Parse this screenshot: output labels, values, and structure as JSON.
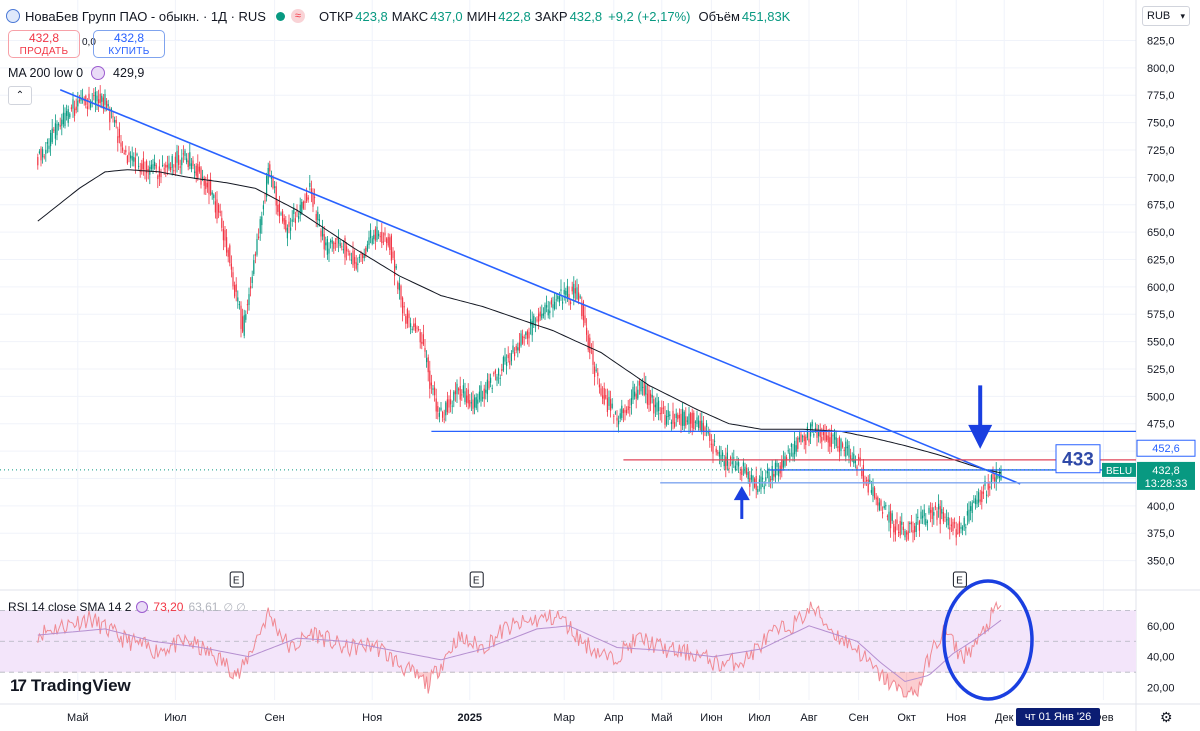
{
  "header": {
    "instrument": "НоваБев Групп ПАО - обыкн. · 1Д · RUS",
    "open_label": "ОТКР",
    "open": "423,8",
    "high_label": "МАКС",
    "high": "437,0",
    "low_label": "МИН",
    "low": "422,8",
    "close_label": "ЗАКР",
    "close": "432,8",
    "change": "+9,2 (+2,17%)",
    "volume_label": "Объём",
    "volume": "451,83K"
  },
  "trade": {
    "sell_price": "432,8",
    "sell_label": "ПРОДАТЬ",
    "spread": "0,0",
    "buy_price": "432,8",
    "buy_label": "КУПИТЬ"
  },
  "ma_legend": {
    "label": "MA 200 low 0",
    "value": "429,9"
  },
  "rsi_legend": {
    "label": "RSI 14 close SMA 14 2",
    "rsi": "73,20",
    "sma": "63,61",
    "ghost": "∅ ∅"
  },
  "branding": {
    "logo": "TradingView",
    "mark": "17"
  },
  "currency": "RUB",
  "crosshair_date": "чт 01 Янв '26",
  "colors": {
    "up": "#089981",
    "down": "#f23645",
    "trendline": "#2962ff",
    "ma": "#131722",
    "level_red": "#e0455a",
    "annotation": "#1a3fe0",
    "rsi_band": "#f3e5fa"
  },
  "chart_data": {
    "type": "candlestick",
    "price_axis": [
      "825,0",
      "800,0",
      "775,0",
      "750,0",
      "725,0",
      "700,0",
      "675,0",
      "650,0",
      "625,0",
      "600,0",
      "575,0",
      "550,0",
      "525,0",
      "500,0",
      "475,0",
      "450,0",
      "425,0",
      "400,0",
      "375,0",
      "350,0"
    ],
    "ylim": [
      335,
      830
    ],
    "x_months": [
      {
        "label": "Май",
        "t": 3
      },
      {
        "label": "Июл",
        "t": 64
      },
      {
        "label": "Сен",
        "t": 126
      },
      {
        "label": "Ноя",
        "t": 187
      },
      {
        "label": "2025",
        "t": 248
      },
      {
        "label": "Мар",
        "t": 307
      },
      {
        "label": "Апр",
        "t": 338
      },
      {
        "label": "Май",
        "t": 368
      },
      {
        "label": "Июн",
        "t": 399
      },
      {
        "label": "Июл",
        "t": 429
      },
      {
        "label": "Авг",
        "t": 460
      },
      {
        "label": "Сен",
        "t": 491
      },
      {
        "label": "Окт",
        "t": 521
      },
      {
        "label": "Ноя",
        "t": 552
      },
      {
        "label": "Дек",
        "t": 582
      },
      {
        "label": "Фев",
        "t": 644
      }
    ],
    "price_key_points": [
      [
        -22,
        720
      ],
      [
        4,
        770
      ],
      [
        20,
        770
      ],
      [
        33,
        720
      ],
      [
        52,
        705
      ],
      [
        70,
        720
      ],
      [
        86,
        690
      ],
      [
        96,
        640
      ],
      [
        106,
        560
      ],
      [
        122,
        705
      ],
      [
        133,
        650
      ],
      [
        148,
        690
      ],
      [
        158,
        635
      ],
      [
        168,
        640
      ],
      [
        177,
        620
      ],
      [
        188,
        650
      ],
      [
        198,
        640
      ],
      [
        207,
        575
      ],
      [
        218,
        550
      ],
      [
        228,
        480
      ],
      [
        240,
        505
      ],
      [
        252,
        495
      ],
      [
        262,
        515
      ],
      [
        278,
        545
      ],
      [
        290,
        570
      ],
      [
        302,
        590
      ],
      [
        316,
        595
      ],
      [
        326,
        520
      ],
      [
        340,
        475
      ],
      [
        354,
        510
      ],
      [
        370,
        480
      ],
      [
        386,
        480
      ],
      [
        396,
        470
      ],
      [
        403,
        445
      ],
      [
        418,
        432
      ],
      [
        428,
        418
      ],
      [
        440,
        432
      ],
      [
        452,
        458
      ],
      [
        464,
        470
      ],
      [
        476,
        460
      ],
      [
        490,
        440
      ],
      [
        502,
        405
      ],
      [
        512,
        385
      ],
      [
        520,
        375
      ],
      [
        531,
        388
      ],
      [
        540,
        395
      ],
      [
        551,
        378
      ],
      [
        557,
        385
      ],
      [
        568,
        412
      ],
      [
        580,
        434
      ]
    ],
    "ma200_points": [
      [
        -22,
        660
      ],
      [
        4,
        690
      ],
      [
        20,
        705
      ],
      [
        34,
        707
      ],
      [
        54,
        705
      ],
      [
        72,
        700
      ],
      [
        96,
        695
      ],
      [
        114,
        690
      ],
      [
        140,
        670
      ],
      [
        176,
        635
      ],
      [
        204,
        610
      ],
      [
        230,
        592
      ],
      [
        256,
        582
      ],
      [
        280,
        570
      ],
      [
        300,
        560
      ],
      [
        330,
        540
      ],
      [
        360,
        510
      ],
      [
        390,
        488
      ],
      [
        410,
        475
      ],
      [
        430,
        470
      ],
      [
        455,
        470
      ],
      [
        480,
        468
      ],
      [
        500,
        462
      ],
      [
        520,
        455
      ],
      [
        540,
        447
      ],
      [
        555,
        440
      ],
      [
        568,
        434
      ],
      [
        580,
        430
      ]
    ],
    "trendline": [
      [
        -8,
        780
      ],
      [
        592,
        420
      ]
    ],
    "horizontal_levels": [
      {
        "price": 468,
        "from_t": 224,
        "color": "blue"
      },
      {
        "price": 442,
        "from_t": 344,
        "color": "red"
      },
      {
        "price": 432.8,
        "from_t": 434,
        "color": "blue"
      },
      {
        "price": 421,
        "from_t": 367,
        "color": "lightblue"
      }
    ],
    "price_labels": [
      {
        "text": "452,6",
        "price": 452.6,
        "style": "outline"
      },
      {
        "text": "432,8",
        "price": 432.8,
        "style": "current",
        "ticker": "BELU",
        "countdown": "13:28:33"
      }
    ],
    "annotations": [
      {
        "type": "arrow-down",
        "t": 567,
        "price_from": 510,
        "price_to": 452
      },
      {
        "type": "arrow-up",
        "t": 418,
        "price_from": 388,
        "price_to": 418
      },
      {
        "type": "text-box",
        "text": "433",
        "price": 443
      },
      {
        "type": "ellipse",
        "target": "rsi_end"
      }
    ],
    "earnings_markers": [
      {
        "t": 102,
        "label": "E"
      },
      {
        "t": 252,
        "label": "E"
      },
      {
        "t": 554,
        "label": "E"
      }
    ],
    "rsi": {
      "axis": [
        "60,00",
        "40,00",
        "20,00"
      ],
      "ylim": [
        12,
        78
      ],
      "band": [
        30,
        70
      ],
      "midline": 50,
      "key_points": [
        [
          -22,
          55
        ],
        [
          10,
          65
        ],
        [
          30,
          52
        ],
        [
          52,
          44
        ],
        [
          72,
          50
        ],
        [
          92,
          38
        ],
        [
          104,
          28
        ],
        [
          122,
          68
        ],
        [
          136,
          45
        ],
        [
          150,
          56
        ],
        [
          170,
          45
        ],
        [
          188,
          48
        ],
        [
          204,
          35
        ],
        [
          222,
          22
        ],
        [
          240,
          52
        ],
        [
          256,
          46
        ],
        [
          270,
          58
        ],
        [
          290,
          64
        ],
        [
          304,
          66
        ],
        [
          318,
          50
        ],
        [
          336,
          38
        ],
        [
          354,
          52
        ],
        [
          372,
          44
        ],
        [
          388,
          42
        ],
        [
          404,
          35
        ],
        [
          420,
          38
        ],
        [
          436,
          54
        ],
        [
          452,
          62
        ],
        [
          462,
          72
        ],
        [
          476,
          55
        ],
        [
          490,
          45
        ],
        [
          502,
          30
        ],
        [
          512,
          22
        ],
        [
          520,
          15
        ],
        [
          528,
          18
        ],
        [
          536,
          42
        ],
        [
          545,
          58
        ],
        [
          552,
          45
        ],
        [
          556,
          40
        ],
        [
          566,
          50
        ],
        [
          574,
          66
        ],
        [
          580,
          73.2
        ]
      ],
      "sma_key_points": [
        [
          -22,
          54
        ],
        [
          20,
          58
        ],
        [
          50,
          50
        ],
        [
          80,
          46
        ],
        [
          110,
          40
        ],
        [
          140,
          52
        ],
        [
          170,
          50
        ],
        [
          200,
          44
        ],
        [
          230,
          38
        ],
        [
          260,
          46
        ],
        [
          290,
          58
        ],
        [
          310,
          60
        ],
        [
          340,
          46
        ],
        [
          370,
          44
        ],
        [
          400,
          40
        ],
        [
          430,
          45
        ],
        [
          460,
          60
        ],
        [
          490,
          50
        ],
        [
          505,
          36
        ],
        [
          520,
          24
        ],
        [
          535,
          28
        ],
        [
          550,
          42
        ],
        [
          565,
          52
        ],
        [
          580,
          63.61
        ]
      ]
    }
  }
}
